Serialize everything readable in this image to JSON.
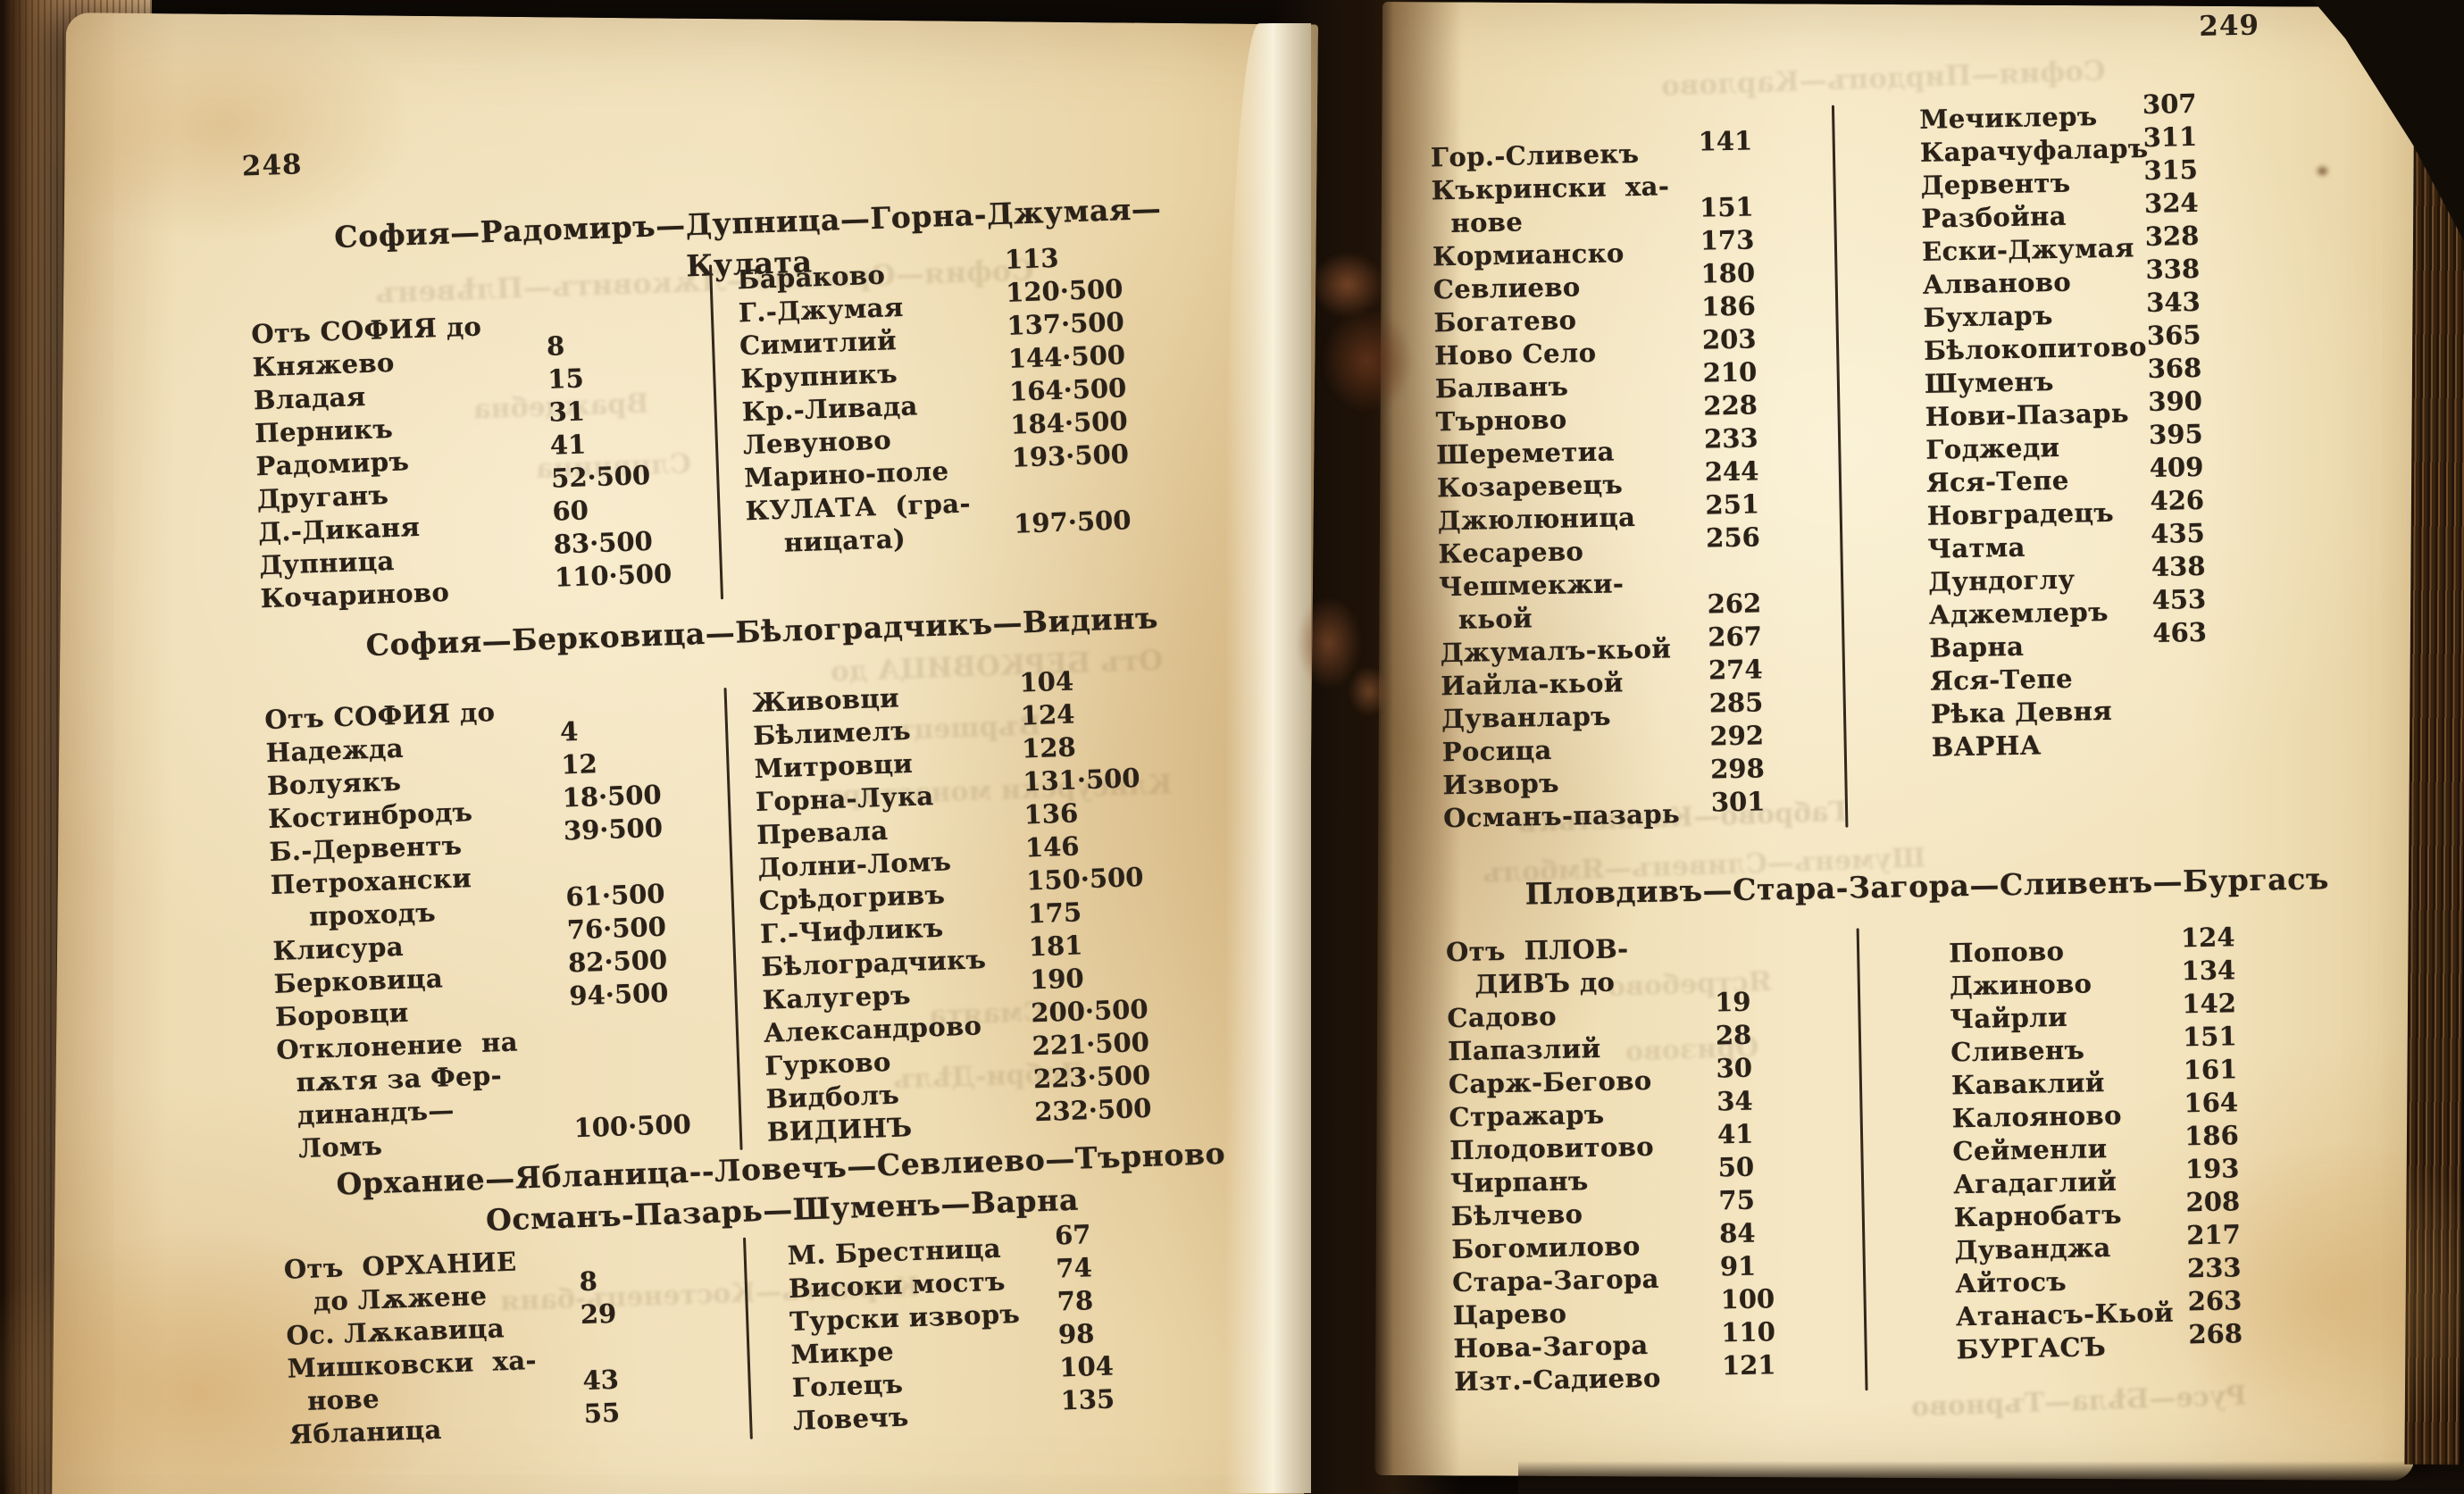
{
  "left": {
    "page_number": "248",
    "sections": [
      {
        "title": [
          "София—Радомиръ—Дупница—Горна-Джумая—",
          "Кулата"
        ],
        "columns": [
          [
            {
              "label": [
                "Отъ СОФИЯ до"
              ],
              "value": ""
            },
            {
              "label": [
                "Княжево"
              ],
              "value": "8"
            },
            {
              "label": [
                "Владая"
              ],
              "value": "15"
            },
            {
              "label": [
                "Перникъ"
              ],
              "value": "31"
            },
            {
              "label": [
                "Радомиръ"
              ],
              "value": "41"
            },
            {
              "label": [
                "Друганъ"
              ],
              "value": "52·500"
            },
            {
              "label": [
                "Д.-Диканя"
              ],
              "value": "60"
            },
            {
              "label": [
                "Дупница"
              ],
              "value": "83·500"
            },
            {
              "label": [
                "Кочариново"
              ],
              "value": "110·500"
            }
          ],
          [
            {
              "label": [
                "Бараково"
              ],
              "value": "113"
            },
            {
              "label": [
                "Г.-Джумая"
              ],
              "value": "120·500"
            },
            {
              "label": [
                "Симитлий"
              ],
              "value": "137·500"
            },
            {
              "label": [
                "Крупникъ"
              ],
              "value": "144·500"
            },
            {
              "label": [
                "Кр.-Ливада"
              ],
              "value": "164·500"
            },
            {
              "label": [
                "Левуново"
              ],
              "value": "184·500"
            },
            {
              "label": [
                "Марино-поле"
              ],
              "value": "193·500"
            },
            {
              "label": [
                "КУЛАТА  (гра-",
                "    ницата)"
              ],
              "value": "197·500"
            }
          ]
        ]
      },
      {
        "title": [
          "София—Берковица—Бѣлоградчикъ—Видинъ"
        ],
        "columns": [
          [
            {
              "label": [
                "Отъ СОФИЯ до"
              ],
              "value": ""
            },
            {
              "label": [
                "Надежда"
              ],
              "value": "4"
            },
            {
              "label": [
                "Волуякъ"
              ],
              "value": "12"
            },
            {
              "label": [
                "Костинбродъ"
              ],
              "value": "18·500"
            },
            {
              "label": [
                "Б.-Дервентъ"
              ],
              "value": "39·500"
            },
            {
              "label": [
                "Петрохански",
                "    проходъ"
              ],
              "value": "61·500"
            },
            {
              "label": [
                "Клисура"
              ],
              "value": "76·500"
            },
            {
              "label": [
                "Берковица"
              ],
              "value": "82·500"
            },
            {
              "label": [
                "Боровци"
              ],
              "value": "94·500"
            },
            {
              "label": [
                "Отклонение  на",
                "  пѫтя за Фер-",
                "  динандъ—",
                "  Ломъ"
              ],
              "value": "100·500"
            }
          ],
          [
            {
              "label": [
                "Живовци"
              ],
              "value": "104"
            },
            {
              "label": [
                "Бѣлимелъ"
              ],
              "value": "124"
            },
            {
              "label": [
                "Митровци"
              ],
              "value": "128"
            },
            {
              "label": [
                "Горна-Лука"
              ],
              "value": "131·500"
            },
            {
              "label": [
                "Превала"
              ],
              "value": "136"
            },
            {
              "label": [
                "Долни-Ломъ"
              ],
              "value": "146"
            },
            {
              "label": [
                "Срѣдогривъ"
              ],
              "value": "150·500"
            },
            {
              "label": [
                "Г.-Чифликъ"
              ],
              "value": "175"
            },
            {
              "label": [
                "Бѣлоградчикъ"
              ],
              "value": "181"
            },
            {
              "label": [
                "Калугеръ"
              ],
              "value": "190"
            },
            {
              "label": [
                "Александрово"
              ],
              "value": "200·500"
            },
            {
              "label": [
                "Гурково"
              ],
              "value": "221·500"
            },
            {
              "label": [
                "Видболъ"
              ],
              "value": "223·500"
            },
            {
              "label": [
                "ВИДИНЪ"
              ],
              "value": "232·500"
            }
          ]
        ]
      },
      {
        "title": [
          "Орхание—Ябланица--Ловечъ—Севлиево—Търново",
          "Османъ-Пазарь—Шуменъ—Варна"
        ],
        "columns": [
          [
            {
              "label": [
                "Отъ  ОРХАНИЕ",
                "   до Лѫжене"
              ],
              "value": "8"
            },
            {
              "label": [
                "Ос. Лѫкавица"
              ],
              "value": "29"
            },
            {
              "label": [
                "Мишковски  ха-",
                "  нове"
              ],
              "value": "43"
            },
            {
              "label": [
                "Ябланица"
              ],
              "value": "55"
            }
          ],
          [
            {
              "label": [
                "М. Брестница"
              ],
              "value": "67"
            },
            {
              "label": [
                "Високи мостъ"
              ],
              "value": "74"
            },
            {
              "label": [
                "Турски изворъ"
              ],
              "value": "78"
            },
            {
              "label": [
                "Микре"
              ],
              "value": "98"
            },
            {
              "label": [
                "Голецъ"
              ],
              "value": "104"
            },
            {
              "label": [
                "Ловечъ"
              ],
              "value": "135"
            }
          ]
        ]
      }
    ]
  },
  "right": {
    "page_number": "249",
    "sections": [
      {
        "title": [],
        "columns": [
          [
            {
              "label": [
                "Гор.-Сливекъ"
              ],
              "value": "141"
            },
            {
              "label": [
                "Къкрински  ха-",
                "  нове"
              ],
              "value": "151"
            },
            {
              "label": [
                "Кормианско"
              ],
              "value": "173"
            },
            {
              "label": [
                "Севлиево"
              ],
              "value": "180"
            },
            {
              "label": [
                "Богатево"
              ],
              "value": "186"
            },
            {
              "label": [
                "Ново Село"
              ],
              "value": "203"
            },
            {
              "label": [
                "Балванъ"
              ],
              "value": "210"
            },
            {
              "label": [
                "Търново"
              ],
              "value": "228"
            },
            {
              "label": [
                "Шереметиа"
              ],
              "value": "233"
            },
            {
              "label": [
                "Козаревецъ"
              ],
              "value": "244"
            },
            {
              "label": [
                "Джюлюница"
              ],
              "value": "251"
            },
            {
              "label": [
                "Кесарево"
              ],
              "value": "256"
            },
            {
              "label": [
                "Чешмекжи-",
                "  кьой"
              ],
              "value": "262"
            },
            {
              "label": [
                "Джумалъ-кьой"
              ],
              "value": "267"
            },
            {
              "label": [
                "Иайла-кьой"
              ],
              "value": "274"
            },
            {
              "label": [
                "Дуванларъ"
              ],
              "value": "285"
            },
            {
              "label": [
                "Росица"
              ],
              "value": "292"
            },
            {
              "label": [
                "Изворъ"
              ],
              "value": "298"
            },
            {
              "label": [
                "Османъ-пазарь"
              ],
              "value": "301"
            }
          ],
          [
            {
              "label": [
                "Мечиклеръ"
              ],
              "value": "307"
            },
            {
              "label": [
                "Карачуфаларъ"
              ],
              "value": "311"
            },
            {
              "label": [
                "Дервентъ"
              ],
              "value": "315"
            },
            {
              "label": [
                "Разбойна"
              ],
              "value": "324"
            },
            {
              "label": [
                "Ески-Джумая"
              ],
              "value": "328"
            },
            {
              "label": [
                "Алваново"
              ],
              "value": "338"
            },
            {
              "label": [
                "Бухларъ"
              ],
              "value": "343"
            },
            {
              "label": [
                "Бѣлокопитово"
              ],
              "value": "365"
            },
            {
              "label": [
                "Шуменъ"
              ],
              "value": "368"
            },
            {
              "label": [
                "Нови-Пазарь"
              ],
              "value": "390"
            },
            {
              "label": [
                "Годжеди"
              ],
              "value": "395"
            },
            {
              "label": [
                "Яся-Тепе"
              ],
              "value": "409"
            },
            {
              "label": [
                "Новградецъ"
              ],
              "value": "426"
            },
            {
              "label": [
                "Чатма"
              ],
              "value": "435"
            },
            {
              "label": [
                "Дундоглу"
              ],
              "value": "438"
            },
            {
              "label": [
                "Аджемлеръ"
              ],
              "value": "453"
            },
            {
              "label": [
                "Варна"
              ],
              "value": "463"
            },
            {
              "label": [
                "Яся-Тепе"
              ],
              "value": ""
            },
            {
              "label": [
                "Рѣка Девня"
              ],
              "value": ""
            },
            {
              "label": [
                "ВАРНА"
              ],
              "value": ""
            }
          ]
        ]
      },
      {
        "title": [
          "Пловдивъ—Стара-Загора—Сливенъ—Бургасъ"
        ],
        "columns": [
          [
            {
              "label": [
                "Отъ  ПЛОВ-",
                "   ДИВЪ до"
              ],
              "value": ""
            },
            {
              "label": [
                "Садово"
              ],
              "value": "19"
            },
            {
              "label": [
                "Папазлий"
              ],
              "value": "28"
            },
            {
              "label": [
                "Сарж-Бегово"
              ],
              "value": "30"
            },
            {
              "label": [
                "Стражаръ"
              ],
              "value": "34"
            },
            {
              "label": [
                "Плодовитово"
              ],
              "value": "41"
            },
            {
              "label": [
                "Чирпанъ"
              ],
              "value": "50"
            },
            {
              "label": [
                "Бѣлчево"
              ],
              "value": "75"
            },
            {
              "label": [
                "Богомилово"
              ],
              "value": "84"
            },
            {
              "label": [
                "Стара-Загора"
              ],
              "value": "91"
            },
            {
              "label": [
                "Царево"
              ],
              "value": "100"
            },
            {
              "label": [
                "Нова-Загора"
              ],
              "value": "110"
            },
            {
              "label": [
                "Изт.-Садиево"
              ],
              "value": "121"
            }
          ],
          [
            {
              "label": [
                "Попово"
              ],
              "value": "124"
            },
            {
              "label": [
                "Джиново"
              ],
              "value": "134"
            },
            {
              "label": [
                "Чайрли"
              ],
              "value": "142"
            },
            {
              "label": [
                "Сливенъ"
              ],
              "value": "151"
            },
            {
              "label": [
                "Каваклий"
              ],
              "value": "161"
            },
            {
              "label": [
                "Калояново"
              ],
              "value": "164"
            },
            {
              "label": [
                "Сейменли"
              ],
              "value": "186"
            },
            {
              "label": [
                "Агадаглий"
              ],
              "value": "193"
            },
            {
              "label": [
                "Карнобатъ"
              ],
              "value": "208"
            },
            {
              "label": [
                "Дуванджа"
              ],
              "value": "217"
            },
            {
              "label": [
                "Айтосъ"
              ],
              "value": "233"
            },
            {
              "label": [
                "Атанасъ-Кьой"
              ],
              "value": "263"
            },
            {
              "label": [
                "БУРГАСЪ"
              ],
              "value": "268"
            }
          ]
        ]
      }
    ]
  },
  "ghosts": [
    "София—Орхание—Лѫковитъ—Плѣвенъ",
    "Отъ БЕРКОВИЦА до",
    "Вършецъ",
    "Клисурски монастиръ",
    "Враждебна",
    "Сливница",
    "Смаята",
    "Добри-Дѣлъ",
    "Корнитъ—Костенецъ-баня",
    "Габрово—Казанлъкъ",
    "Шуменъ—Сливенъ—Ямболъ",
    "Русе—Бѣла—Търново",
    "Ястребово",
    "Оризово",
    "София—Пирдопъ—Карлово"
  ]
}
